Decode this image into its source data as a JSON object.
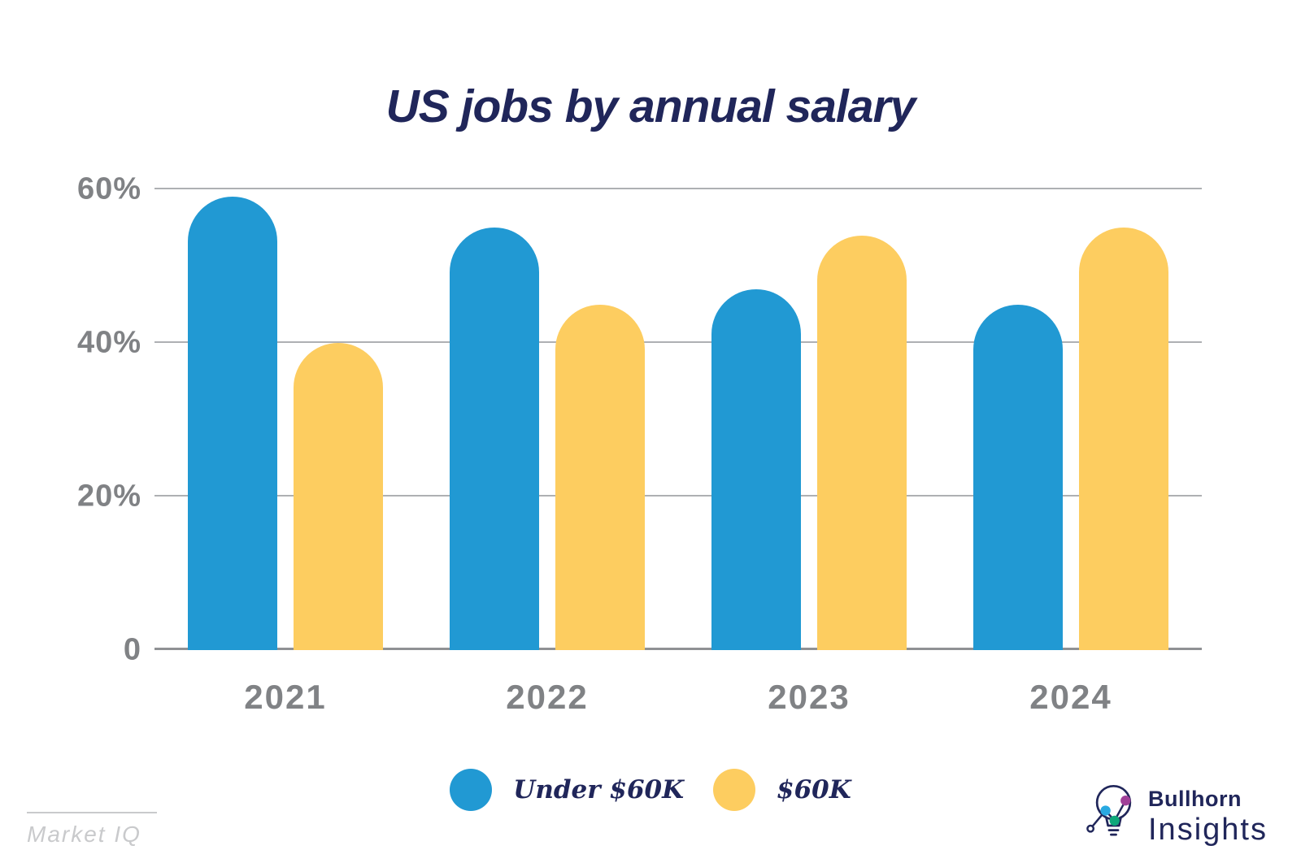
{
  "title": "US jobs by annual salary",
  "colors": {
    "blue": "#2199d3",
    "yellow": "#fdcd60",
    "navy": "#20265a",
    "axis_label": "#808285",
    "gridline": "#aeb0b3",
    "baseline": "#8f9194",
    "muted": "#c9cacc",
    "logo_blue_dot": "#29a9e1",
    "logo_green_dot": "#0fa87a",
    "logo_purple_dot": "#a04098"
  },
  "chart_data": {
    "type": "bar",
    "title": "US jobs by annual salary",
    "categories": [
      "2021",
      "2022",
      "2023",
      "2024"
    ],
    "series": [
      {
        "name": "Under $60K",
        "color_key": "blue",
        "values": [
          59,
          55,
          47,
          45
        ]
      },
      {
        "name": "$60K",
        "color_key": "yellow",
        "values": [
          40,
          45,
          54,
          55
        ]
      }
    ],
    "xlabel": "",
    "ylabel": "",
    "ylim": [
      0,
      60
    ],
    "yticks": [
      {
        "value": 0,
        "label": "0"
      },
      {
        "value": 20,
        "label": "20%"
      },
      {
        "value": 40,
        "label": "40%"
      },
      {
        "value": 60,
        "label": "60%"
      }
    ],
    "grid": true,
    "legend_position": "bottom",
    "bar_style": "rounded-top"
  },
  "legend": {
    "items": [
      {
        "label": "Under $60K",
        "color_key": "blue"
      },
      {
        "label": "$60K",
        "color_key": "yellow"
      }
    ]
  },
  "footer": {
    "source": "Market IQ"
  },
  "brand": {
    "line1": "Bullhorn",
    "line2": "Insights"
  }
}
